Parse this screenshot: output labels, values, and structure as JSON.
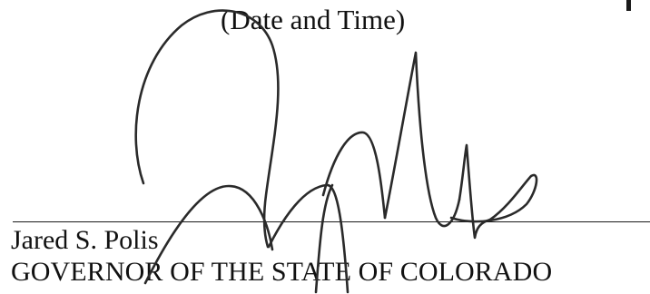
{
  "date_label": "(Date and Time)",
  "signatory": {
    "name": "Jared S. Polis",
    "title": "GOVERNOR OF THE STATE OF COLORADO"
  },
  "ink_color": "#2a2a2a"
}
